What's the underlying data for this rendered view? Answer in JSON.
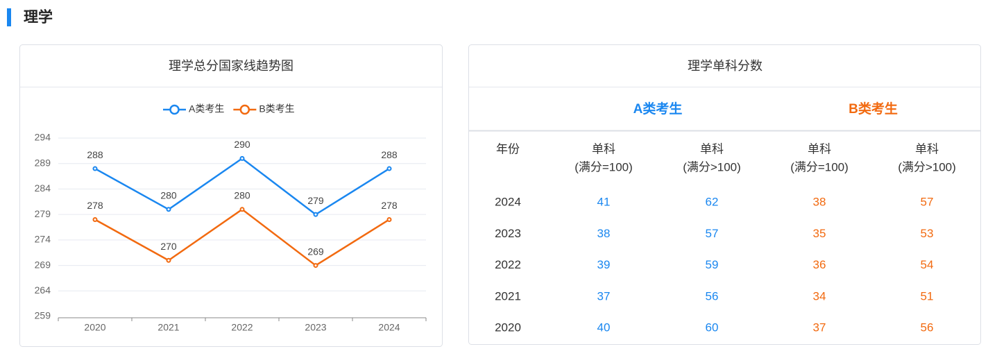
{
  "header": {
    "title": "理学"
  },
  "chart_data": {
    "type": "line",
    "title": "理学总分国家线趋势图",
    "categories": [
      "2020",
      "2021",
      "2022",
      "2023",
      "2024"
    ],
    "series": [
      {
        "name": "A类考生",
        "color": "#1a87f0",
        "values": [
          288,
          280,
          290,
          279,
          288
        ]
      },
      {
        "name": "B类考生",
        "color": "#f26a10",
        "values": [
          278,
          270,
          280,
          269,
          278
        ]
      }
    ],
    "ylim": [
      259,
      294
    ],
    "yticks": [
      259,
      264,
      269,
      274,
      279,
      284,
      289,
      294
    ],
    "grid": true,
    "legend": "top"
  },
  "table": {
    "title": "理学单科分数",
    "groups": [
      {
        "name": "A类考生",
        "color": "#1a87f0"
      },
      {
        "name": "B类考生",
        "color": "#f26a10"
      }
    ],
    "columns": [
      [
        "年份"
      ],
      [
        "单科",
        "(满分=100)"
      ],
      [
        "单科",
        "(满分>100)"
      ],
      [
        "单科",
        "(满分=100)"
      ],
      [
        "单科",
        "(满分>100)"
      ]
    ],
    "rows": [
      [
        "2024",
        "41",
        "62",
        "38",
        "57"
      ],
      [
        "2023",
        "38",
        "57",
        "35",
        "53"
      ],
      [
        "2022",
        "39",
        "59",
        "36",
        "54"
      ],
      [
        "2021",
        "37",
        "56",
        "34",
        "51"
      ],
      [
        "2020",
        "40",
        "60",
        "37",
        "56"
      ]
    ]
  }
}
